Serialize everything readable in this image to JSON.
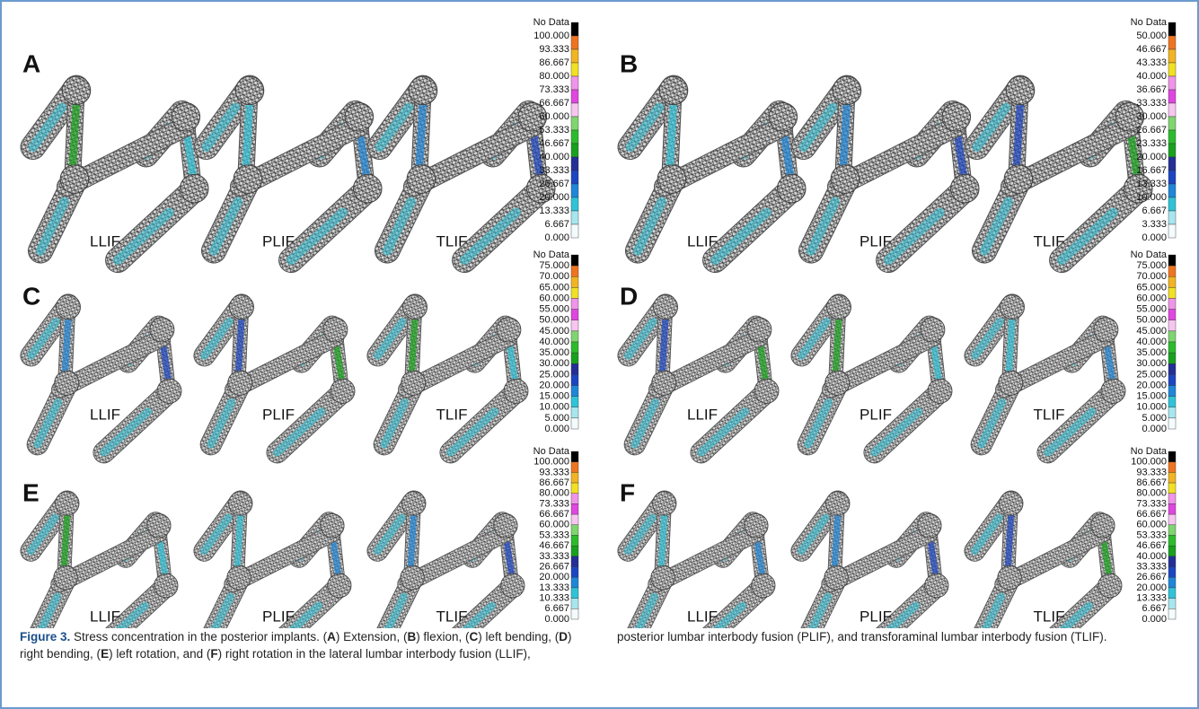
{
  "panels": [
    {
      "letter": "A",
      "labels": [
        "LLIF",
        "PLIF",
        "TLIF"
      ],
      "legend": [
        "No Data",
        "100.000",
        "93.333",
        "86.667",
        "80.000",
        "73.333",
        "66.667",
        "60.000",
        "53.333",
        "46.667",
        "40.000",
        "33.333",
        "26.667",
        "20.000",
        "13.333",
        "6.667",
        "0.000"
      ]
    },
    {
      "letter": "B",
      "labels": [
        "LLIF",
        "PLIF",
        "TLIF"
      ],
      "legend": [
        "No Data",
        "50.000",
        "46.667",
        "43.333",
        "40.000",
        "36.667",
        "33.333",
        "30.000",
        "26.667",
        "23.333",
        "20.000",
        "16.667",
        "13.333",
        "10.000",
        "6.667",
        "3.333",
        "0.000"
      ]
    },
    {
      "letter": "C",
      "labels": [
        "LLIF",
        "PLIF",
        "TLIF"
      ],
      "legend": [
        "No Data",
        "75.000",
        "70.000",
        "65.000",
        "60.000",
        "55.000",
        "50.000",
        "45.000",
        "40.000",
        "35.000",
        "30.000",
        "25.000",
        "20.000",
        "15.000",
        "10.000",
        "5.000",
        "0.000"
      ]
    },
    {
      "letter": "D",
      "labels": [
        "LLIF",
        "PLIF",
        "TLIF"
      ],
      "legend": [
        "No Data",
        "75.000",
        "70.000",
        "65.000",
        "60.000",
        "55.000",
        "50.000",
        "45.000",
        "40.000",
        "35.000",
        "30.000",
        "25.000",
        "20.000",
        "15.000",
        "10.000",
        "5.000",
        "0.000"
      ]
    },
    {
      "letter": "E",
      "labels": [
        "LLIF",
        "PLIF",
        "TLIF"
      ],
      "legend": [
        "No Data",
        "100.000",
        "93.333",
        "86.667",
        "80.000",
        "73.333",
        "66.667",
        "60.000",
        "53.333",
        "46.667",
        "33.333",
        "26.667",
        "20.000",
        "13.333",
        "10.333",
        "6.667",
        "0.000"
      ]
    },
    {
      "letter": "F",
      "labels": [
        "LLIF",
        "PLIF",
        "TLIF"
      ],
      "legend": [
        "No Data",
        "100.000",
        "93.333",
        "86.667",
        "80.000",
        "73.333",
        "66.667",
        "60.000",
        "53.333",
        "46.667",
        "40.000",
        "33.333",
        "26.667",
        "20.000",
        "13.333",
        "6.667",
        "0.000"
      ]
    }
  ],
  "caption": {
    "label": "Figure 3.",
    "runs": [
      {
        "text": " Stress concentration in the posterior implants. (",
        "bold": false
      },
      {
        "text": "A",
        "bold": true
      },
      {
        "text": ") Extension, (",
        "bold": false
      },
      {
        "text": "B",
        "bold": true
      },
      {
        "text": ") flexion, (",
        "bold": false
      },
      {
        "text": "C",
        "bold": true
      },
      {
        "text": ") left bending, (",
        "bold": false
      },
      {
        "text": "D",
        "bold": true
      },
      {
        "text": ") right bending, (",
        "bold": false
      },
      {
        "text": "E",
        "bold": true
      },
      {
        "text": ") left rotation, and (",
        "bold": false
      },
      {
        "text": "F",
        "bold": true
      },
      {
        "text": ") right rotation in the lateral lumbar interbody fusion (LLIF), posterior lumbar interbody fusion (PLIF), and transforaminal lumbar interbody fusion (TLIF).",
        "bold": false
      }
    ]
  }
}
